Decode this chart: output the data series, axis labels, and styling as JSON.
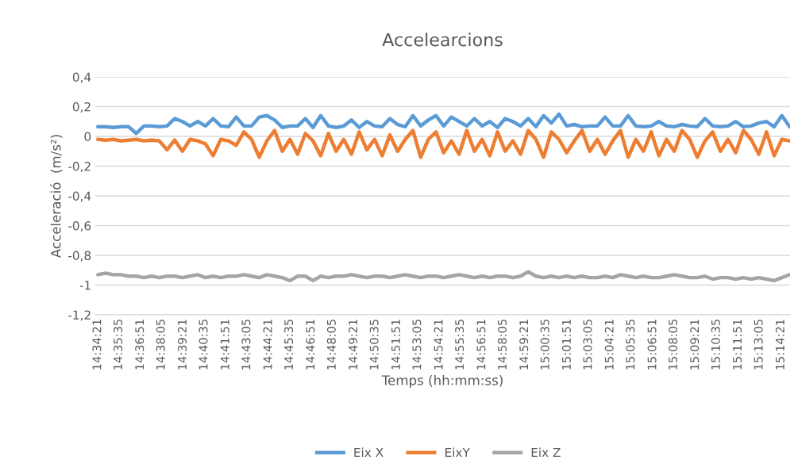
{
  "chart_data": {
    "type": "line",
    "title": "Accelearcions",
    "xlabel": "Temps (hh:mm:ss)",
    "ylabel": "Acceleració  (m/s²)",
    "x": [
      14.5725,
      14.58,
      14.5875,
      14.595,
      14.6025,
      14.61,
      14.6175,
      14.625,
      14.6325,
      14.64,
      14.6475,
      14.655,
      14.6625,
      14.67,
      14.6775,
      14.685,
      14.6925,
      14.7,
      14.7075,
      14.715,
      14.7225,
      14.73,
      14.7375,
      14.745,
      14.7525,
      14.76,
      14.7675,
      14.775,
      14.7825,
      14.79,
      14.7975,
      14.805,
      14.8125,
      14.82,
      14.8275,
      14.835,
      14.8425,
      14.85,
      14.8575,
      14.865,
      14.8725,
      14.88,
      14.8875,
      14.895,
      14.9025,
      14.91,
      14.9175,
      14.925,
      14.9325,
      14.94,
      14.9475,
      14.955,
      14.9625,
      14.97,
      14.9775,
      14.985,
      14.9925,
      15.0,
      15.0075,
      15.015,
      15.0225,
      15.03,
      15.0375,
      15.045,
      15.0525,
      15.06,
      15.0675,
      15.075,
      15.0825,
      15.09,
      15.0975,
      15.105,
      15.1125,
      15.12,
      15.1275,
      15.135,
      15.1425,
      15.15,
      15.1575,
      15.165,
      15.1725,
      15.18,
      15.1875,
      15.195,
      15.2025,
      15.21,
      15.2175,
      15.225,
      15.2325,
      15.24,
      15.2475
    ],
    "series": [
      {
        "name": "Eix X",
        "color": "#5b9bd5",
        "values": [
          0.065,
          0.065,
          0.06,
          0.065,
          0.065,
          0.02,
          0.07,
          0.07,
          0.065,
          0.07,
          0.12,
          0.1,
          0.07,
          0.1,
          0.07,
          0.12,
          0.07,
          0.065,
          0.13,
          0.07,
          0.07,
          0.13,
          0.14,
          0.11,
          0.06,
          0.07,
          0.07,
          0.12,
          0.06,
          0.14,
          0.07,
          0.06,
          0.07,
          0.11,
          0.06,
          0.1,
          0.07,
          0.065,
          0.12,
          0.08,
          0.065,
          0.14,
          0.07,
          0.11,
          0.14,
          0.07,
          0.13,
          0.1,
          0.07,
          0.12,
          0.07,
          0.1,
          0.06,
          0.12,
          0.1,
          0.07,
          0.12,
          0.065,
          0.14,
          0.09,
          0.15,
          0.07,
          0.08,
          0.065,
          0.07,
          0.07,
          0.13,
          0.07,
          0.07,
          0.14,
          0.07,
          0.065,
          0.07,
          0.1,
          0.07,
          0.065,
          0.08,
          0.07,
          0.065,
          0.12,
          0.07,
          0.065,
          0.07,
          0.1,
          0.065,
          0.07,
          0.09,
          0.1,
          0.065,
          0.14,
          0.065
        ]
      },
      {
        "name": "EixY",
        "color": "#ed7d31",
        "values": [
          -0.02,
          -0.025,
          -0.02,
          -0.03,
          -0.025,
          -0.02,
          -0.03,
          -0.025,
          -0.03,
          -0.09,
          -0.025,
          -0.1,
          -0.02,
          -0.03,
          -0.05,
          -0.13,
          -0.02,
          -0.03,
          -0.06,
          0.03,
          -0.02,
          -0.14,
          -0.03,
          0.04,
          -0.1,
          -0.02,
          -0.12,
          0.02,
          -0.03,
          -0.13,
          0.02,
          -0.1,
          -0.02,
          -0.12,
          0.03,
          -0.09,
          -0.02,
          -0.13,
          0.01,
          -0.1,
          -0.02,
          0.04,
          -0.14,
          -0.02,
          0.03,
          -0.11,
          -0.03,
          -0.12,
          0.04,
          -0.1,
          -0.02,
          -0.13,
          0.03,
          -0.1,
          -0.03,
          -0.12,
          0.04,
          -0.02,
          -0.14,
          0.03,
          -0.02,
          -0.11,
          -0.03,
          0.04,
          -0.1,
          -0.02,
          -0.12,
          -0.03,
          0.04,
          -0.14,
          -0.02,
          -0.1,
          0.03,
          -0.13,
          -0.02,
          -0.1,
          0.04,
          -0.02,
          -0.14,
          -0.03,
          0.03,
          -0.1,
          -0.02,
          -0.11,
          0.04,
          -0.02,
          -0.12,
          0.03,
          -0.13,
          -0.02,
          -0.03
        ]
      },
      {
        "name": "Eix Z",
        "color": "#a5a5a5",
        "values": [
          -0.93,
          -0.92,
          -0.93,
          -0.93,
          -0.94,
          -0.94,
          -0.95,
          -0.94,
          -0.95,
          -0.94,
          -0.94,
          -0.95,
          -0.94,
          -0.93,
          -0.95,
          -0.94,
          -0.95,
          -0.94,
          -0.94,
          -0.93,
          -0.94,
          -0.95,
          -0.93,
          -0.94,
          -0.95,
          -0.97,
          -0.94,
          -0.94,
          -0.97,
          -0.94,
          -0.95,
          -0.94,
          -0.94,
          -0.93,
          -0.94,
          -0.95,
          -0.94,
          -0.94,
          -0.95,
          -0.94,
          -0.93,
          -0.94,
          -0.95,
          -0.94,
          -0.94,
          -0.95,
          -0.94,
          -0.93,
          -0.94,
          -0.95,
          -0.94,
          -0.95,
          -0.94,
          -0.94,
          -0.95,
          -0.94,
          -0.91,
          -0.94,
          -0.95,
          -0.94,
          -0.95,
          -0.94,
          -0.95,
          -0.94,
          -0.95,
          -0.95,
          -0.94,
          -0.95,
          -0.93,
          -0.94,
          -0.95,
          -0.94,
          -0.95,
          -0.95,
          -0.94,
          -0.93,
          -0.94,
          -0.95,
          -0.95,
          -0.94,
          -0.96,
          -0.95,
          -0.95,
          -0.96,
          -0.95,
          -0.96,
          -0.95,
          -0.96,
          -0.97,
          -0.95,
          -0.93
        ]
      }
    ],
    "xlim": [
      14.57,
      15.248
    ],
    "xticks": [
      {
        "value": 14.5725,
        "label": "14:34:21"
      },
      {
        "value": 14.5931,
        "label": "14:35:35"
      },
      {
        "value": 14.6142,
        "label": "14:36:51"
      },
      {
        "value": 14.6347,
        "label": "14:38:05"
      },
      {
        "value": 14.6558,
        "label": "14:39:21"
      },
      {
        "value": 14.6764,
        "label": "14:40:35"
      },
      {
        "value": 14.6975,
        "label": "14:41:51"
      },
      {
        "value": 14.7181,
        "label": "14:43:05"
      },
      {
        "value": 14.7392,
        "label": "14:44:21"
      },
      {
        "value": 14.7597,
        "label": "14:45:35"
      },
      {
        "value": 14.7808,
        "label": "14:46:51"
      },
      {
        "value": 14.8014,
        "label": "14:48:05"
      },
      {
        "value": 14.8225,
        "label": "14:49:21"
      },
      {
        "value": 14.8431,
        "label": "14:50:35"
      },
      {
        "value": 14.8642,
        "label": "14:51:51"
      },
      {
        "value": 14.8847,
        "label": "14:53:05"
      },
      {
        "value": 14.9058,
        "label": "14:54:21"
      },
      {
        "value": 14.9264,
        "label": "14:55:35"
      },
      {
        "value": 14.9475,
        "label": "14:56:51"
      },
      {
        "value": 14.9681,
        "label": "14:58:05"
      },
      {
        "value": 14.9892,
        "label": "14:59:21"
      },
      {
        "value": 15.0097,
        "label": "15:00:35"
      },
      {
        "value": 15.0308,
        "label": "15:01:51"
      },
      {
        "value": 15.0514,
        "label": "15:03:05"
      },
      {
        "value": 15.0725,
        "label": "15:04:21"
      },
      {
        "value": 15.0931,
        "label": "15:05:35"
      },
      {
        "value": 15.1142,
        "label": "15:06:51"
      },
      {
        "value": 15.1347,
        "label": "15:08:05"
      },
      {
        "value": 15.1558,
        "label": "15:09:21"
      },
      {
        "value": 15.1764,
        "label": "15:10:35"
      },
      {
        "value": 15.1975,
        "label": "15:11:51"
      },
      {
        "value": 15.2181,
        "label": "15:13:05"
      },
      {
        "value": 15.2392,
        "label": "15:14:21"
      }
    ],
    "ylim": [
      -1.2,
      0.4
    ],
    "yticks": [
      {
        "value": -1.2,
        "label": "-1,2"
      },
      {
        "value": -1,
        "label": "-1"
      },
      {
        "value": -0.8,
        "label": "-0,8"
      },
      {
        "value": -0.6,
        "label": "-0,6"
      },
      {
        "value": -0.4,
        "label": "-0,4"
      },
      {
        "value": -0.2,
        "label": "-0,2"
      },
      {
        "value": 0,
        "label": "0"
      },
      {
        "value": 0.2,
        "label": "0,2"
      },
      {
        "value": 0.4,
        "label": "0,4"
      }
    ],
    "grid": "y",
    "legend": "bottom",
    "marker": "none",
    "line_style": "solid"
  }
}
